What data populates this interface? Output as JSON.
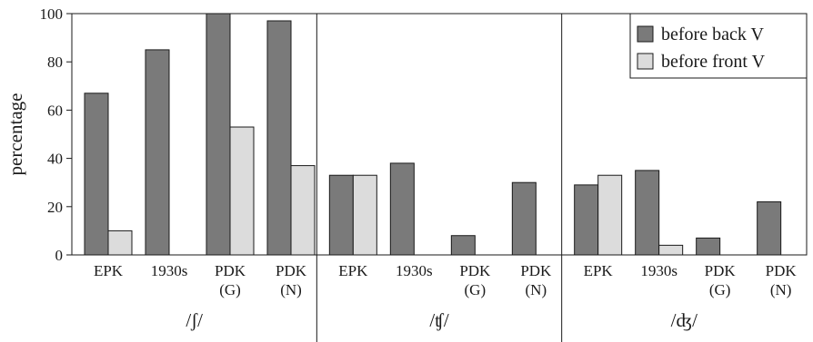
{
  "chart_data": {
    "type": "bar",
    "ylabel": "percentage",
    "ylim": [
      0,
      100
    ],
    "yticks": [
      0,
      20,
      40,
      60,
      80,
      100
    ],
    "grid": false,
    "legend_position": "top-right",
    "series": [
      {
        "name": "before back V",
        "color": "#7a7a7a"
      },
      {
        "name": "before front V",
        "color": "#dcdcdc"
      }
    ],
    "groups": [
      {
        "label": "/ʃ/",
        "categories": [
          {
            "label": [
              "EPK"
            ],
            "values": [
              67,
              10
            ]
          },
          {
            "label": [
              "1930s"
            ],
            "values": [
              85,
              0
            ]
          },
          {
            "label": [
              "PDK",
              "(G)"
            ],
            "values": [
              100,
              53
            ]
          },
          {
            "label": [
              "PDK",
              "(N)"
            ],
            "values": [
              97,
              37
            ]
          }
        ]
      },
      {
        "label": "/ʧ/",
        "categories": [
          {
            "label": [
              "EPK"
            ],
            "values": [
              33,
              33
            ]
          },
          {
            "label": [
              "1930s"
            ],
            "values": [
              38,
              0
            ]
          },
          {
            "label": [
              "PDK",
              "(G)"
            ],
            "values": [
              8,
              0
            ]
          },
          {
            "label": [
              "PDK",
              "(N)"
            ],
            "values": [
              30,
              0
            ]
          }
        ]
      },
      {
        "label": "/ʤ/",
        "categories": [
          {
            "label": [
              "EPK"
            ],
            "values": [
              29,
              33
            ]
          },
          {
            "label": [
              "1930s"
            ],
            "values": [
              35,
              4
            ]
          },
          {
            "label": [
              "PDK",
              "(G)"
            ],
            "values": [
              7,
              0
            ]
          },
          {
            "label": [
              "PDK",
              "(N)"
            ],
            "values": [
              22,
              0
            ]
          }
        ]
      }
    ]
  }
}
